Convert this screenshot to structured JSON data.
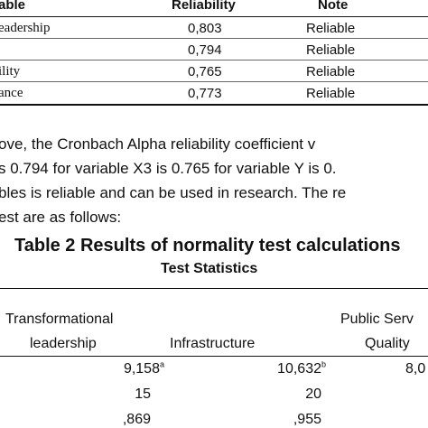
{
  "table1": {
    "headers": [
      "able",
      "Reliability",
      "Note"
    ],
    "rows": [
      {
        "variable": "eadership",
        "reliability": "0,803",
        "note": "Reliable"
      },
      {
        "variable": "",
        "reliability": "0,794",
        "note": "Reliable"
      },
      {
        "variable": "ility",
        "reliability": "0,765",
        "note": "Reliable"
      },
      {
        "variable": "ance",
        "reliability": "0,773",
        "note": "Reliable"
      }
    ]
  },
  "paragraph": {
    "lines": [
      "ove, the Cronbach Alpha reliability coefficient v",
      "s 0.794 for variable X3 is 0.765 for variable Y is 0.",
      "bles is reliable and can be used in research. The re",
      "est are as follows:"
    ]
  },
  "table2": {
    "title": "Table 2 Results of normality test calculations",
    "subtitle": "Test Statistics",
    "columns": {
      "col1_line1": "Transformational",
      "col1_line2": "leadership",
      "col2": "Infrastructure",
      "col3_line1": "Public Serv",
      "col3_line2": "Quality"
    },
    "rows": [
      {
        "c1": "9,158",
        "c1_sup": "a",
        "c2": "10,632",
        "c2_sup": "b",
        "c3": "8,0"
      },
      {
        "c1": "15",
        "c1_sup": "",
        "c2": "20",
        "c2_sup": "",
        "c3": ""
      },
      {
        "c1": ",869",
        "c1_sup": "",
        "c2": ",955",
        "c2_sup": "",
        "c3": ""
      }
    ]
  }
}
